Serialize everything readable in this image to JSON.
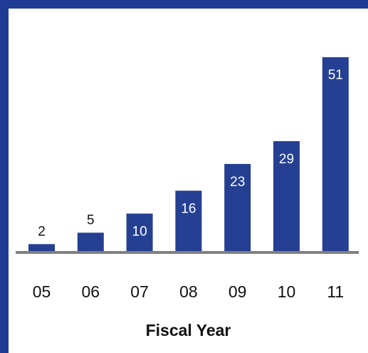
{
  "chart_data": {
    "type": "bar",
    "title": "",
    "xlabel": "Fiscal Year",
    "ylabel": "",
    "categories": [
      "05",
      "06",
      "07",
      "08",
      "09",
      "10",
      "11"
    ],
    "values": [
      2,
      5,
      10,
      16,
      23,
      29,
      51
    ],
    "ylim": [
      0,
      55
    ],
    "grid": false,
    "legend": "none",
    "colors": {
      "bar": "#253f92",
      "frame": "#1f3b95",
      "baseline": "#808080",
      "label_inside": "#ffffff",
      "label_outside": "#111111"
    }
  }
}
